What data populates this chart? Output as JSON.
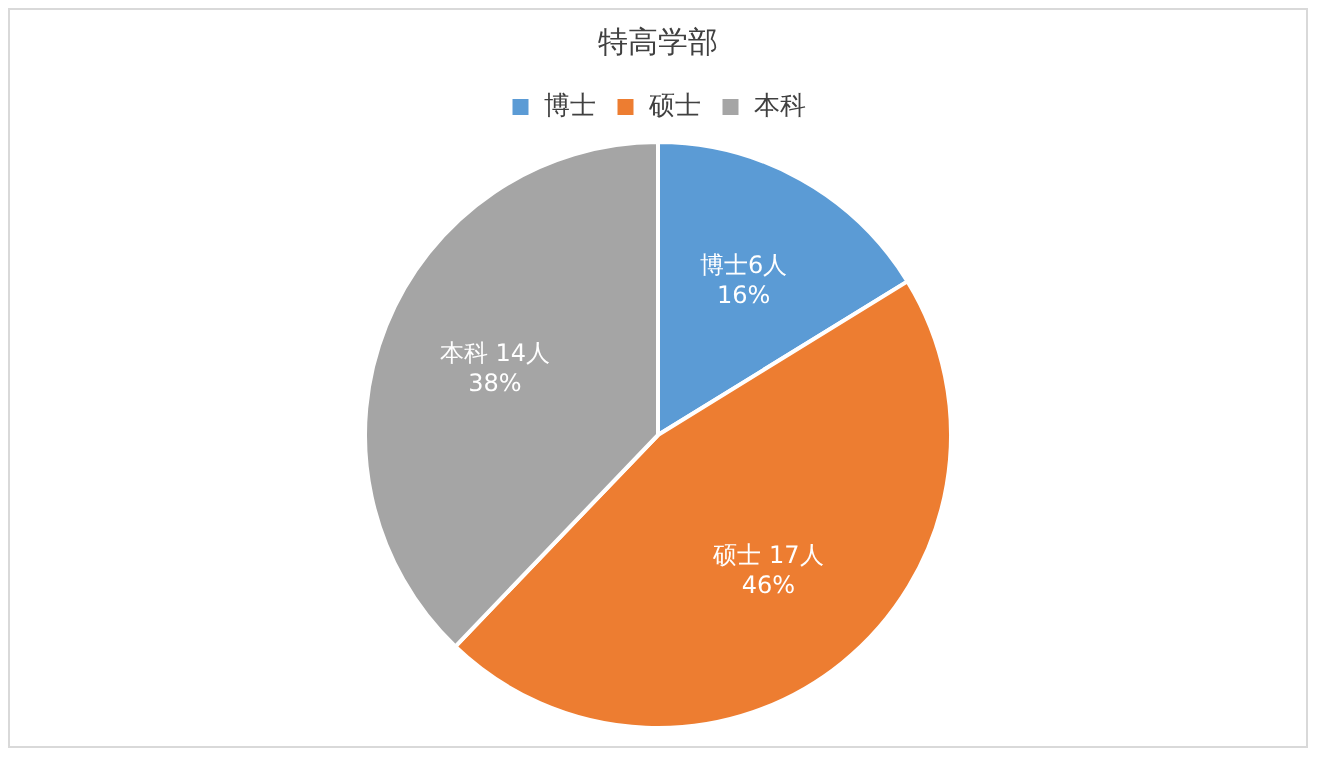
{
  "chart_data": {
    "type": "pie",
    "title": "特高学部",
    "categories": [
      "博士",
      "硕士",
      "本科"
    ],
    "values": [
      6,
      17,
      14
    ],
    "colors": [
      "#5b9bd5",
      "#ed7d31",
      "#a5a5a5"
    ],
    "value_labels": [
      "博士6人\n16%",
      "硕士 17人\n46%",
      "本科 14人\n38%"
    ],
    "legend": "top"
  }
}
